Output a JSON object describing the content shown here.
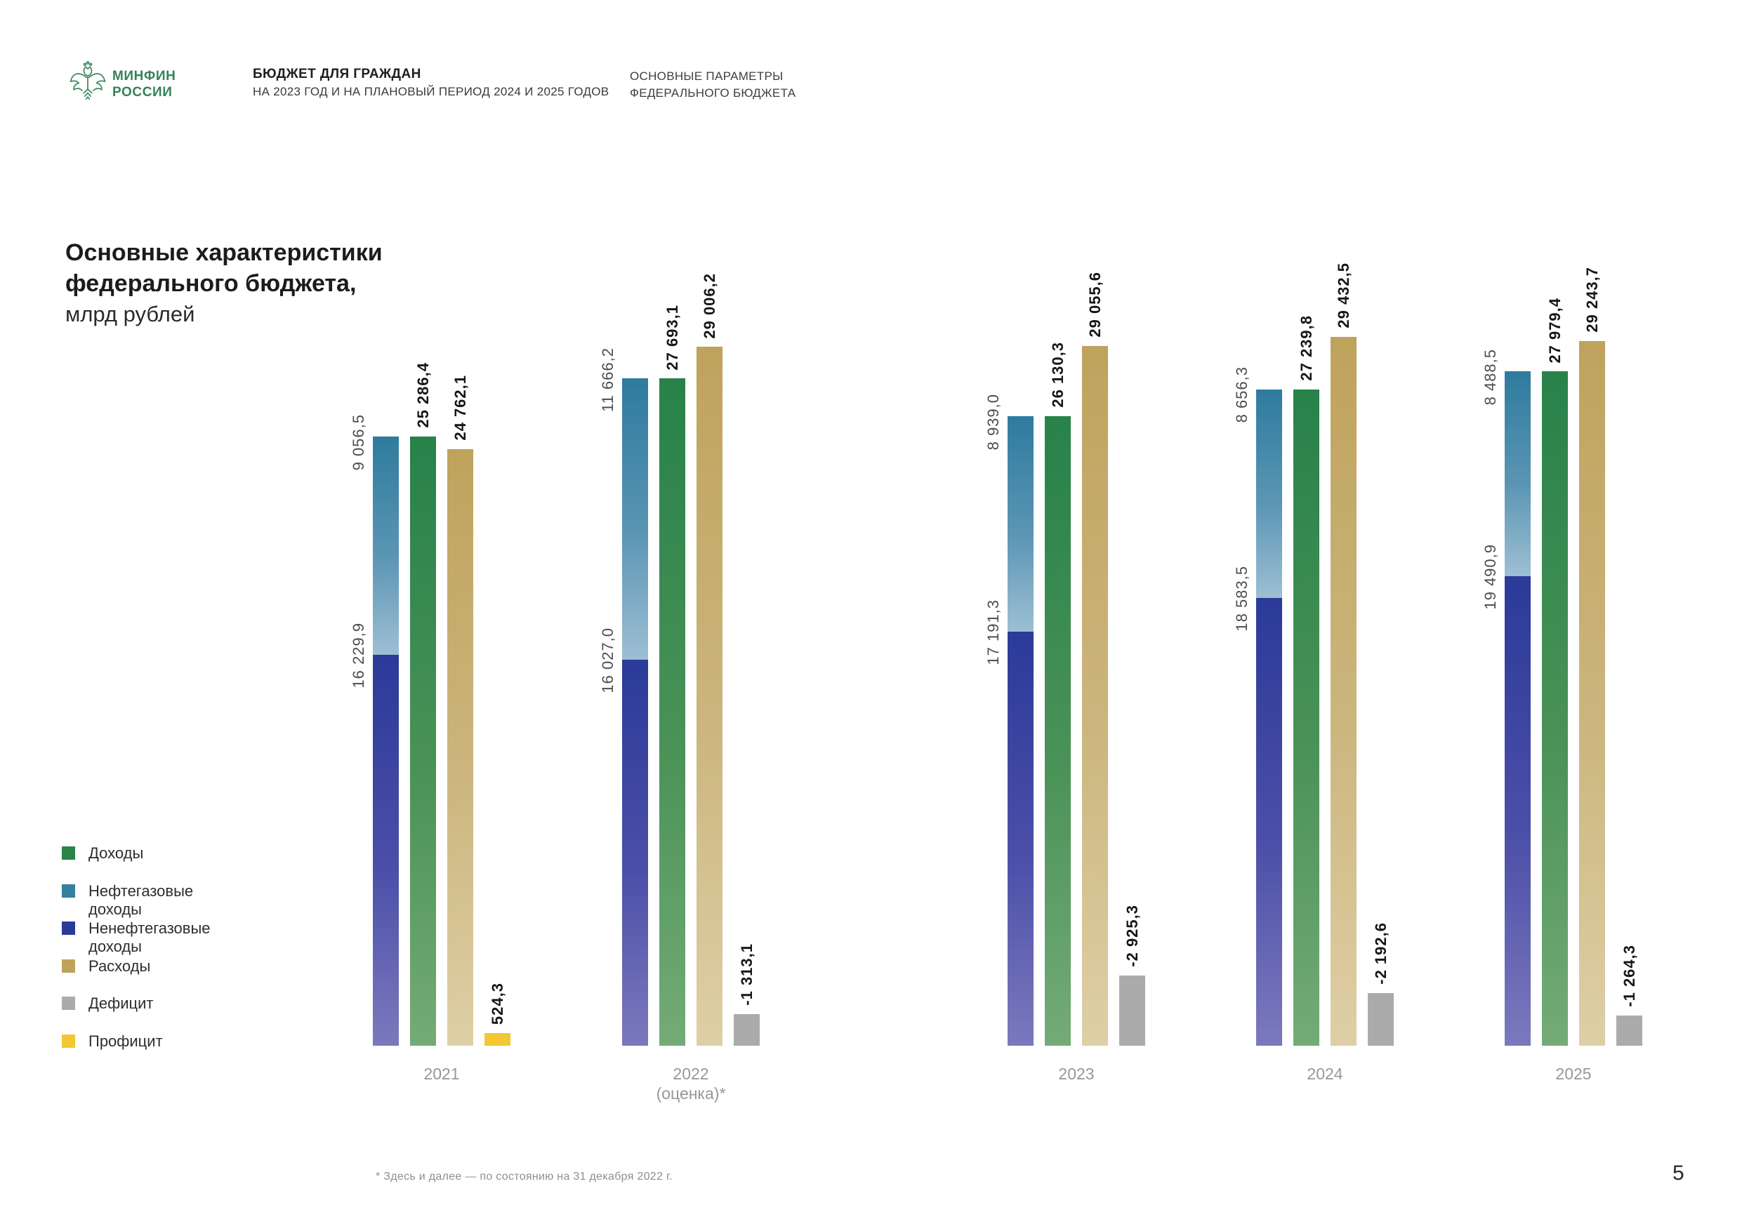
{
  "header": {
    "ministry": {
      "line1": "МИНФИН",
      "line2": "РОССИИ"
    },
    "document_title": "БЮДЖЕТ ДЛЯ ГРАЖДАН",
    "document_subtitle": "НА 2023 ГОД И НА ПЛАНОВЫЙ ПЕРИОД 2024 И 2025 ГОДОВ",
    "section_title_line1": "ОСНОВНЫЕ ПАРАМЕТРЫ",
    "section_title_line2": "ФЕДЕРАЛЬНОГО БЮДЖЕТА"
  },
  "chart_title": {
    "line1": "Основные характеристики",
    "line2": "федерального бюджета,",
    "unit": "млрд рублей"
  },
  "legend": {
    "items": [
      {
        "label": "Доходы",
        "color": "#2a8449"
      },
      {
        "label": "Нефтегазовые\nдоходы",
        "color": "#36809f"
      },
      {
        "label": "Ненефтегазовые\nдоходы",
        "color": "#2b3a99"
      },
      {
        "label": "Расходы",
        "color": "#bfa25c"
      },
      {
        "label": "Дефицит",
        "color": "#ababab"
      },
      {
        "label": "Профицит",
        "color": "#f2c733"
      }
    ]
  },
  "footnote": "* Здесь и далее — по состоянию на 31 декабря 2022 г.",
  "page_number": "5",
  "chart_data": {
    "type": "bar",
    "title": "Основные характеристики федерального бюджета, млрд рублей",
    "ylabel": "млрд рублей",
    "categories": [
      "2021",
      "2022 (оценка)*",
      "2023",
      "2024",
      "2025"
    ],
    "series_names": [
      "Нефтегазовые доходы",
      "Ненефтегазовые доходы",
      "Доходы",
      "Расходы",
      "Дефицит/Профицит"
    ],
    "groups": [
      {
        "year": "2021",
        "year_note": "",
        "oil": {
          "value": 9056.5,
          "label": "9 056,5"
        },
        "nonoil": {
          "value": 16229.9,
          "label": "16 229,9"
        },
        "revenue": {
          "value": 25286.4,
          "label": "25 286,4"
        },
        "expense": {
          "value": 24762.1,
          "label": "24 762,1"
        },
        "balance": {
          "value": 524.3,
          "label": "524,3"
        }
      },
      {
        "year": "2022",
        "year_note": "(оценка)*",
        "oil": {
          "value": 11666.2,
          "label": "11 666,2"
        },
        "nonoil": {
          "value": 16027.0,
          "label": "16 027,0"
        },
        "revenue": {
          "value": 27693.1,
          "label": "27 693,1"
        },
        "expense": {
          "value": 29006.2,
          "label": "29 006,2"
        },
        "balance": {
          "value": -1313.1,
          "label": "-1 313,1"
        }
      },
      {
        "year": "2023",
        "year_note": "",
        "oil": {
          "value": 8939.0,
          "label": "8 939,0"
        },
        "nonoil": {
          "value": 17191.3,
          "label": "17 191,3"
        },
        "revenue": {
          "value": 26130.3,
          "label": "26 130,3"
        },
        "expense": {
          "value": 29055.6,
          "label": "29 055,6"
        },
        "balance": {
          "value": -2925.3,
          "label": "-2 925,3"
        }
      },
      {
        "year": "2024",
        "year_note": "",
        "oil": {
          "value": 8656.3,
          "label": "8 656,3"
        },
        "nonoil": {
          "value": 18583.5,
          "label": "18 583,5"
        },
        "revenue": {
          "value": 27239.8,
          "label": "27 239,8"
        },
        "expense": {
          "value": 29432.5,
          "label": "29 432,5"
        },
        "balance": {
          "value": -2192.6,
          "label": "-2 192,6"
        }
      },
      {
        "year": "2025",
        "year_note": "",
        "oil": {
          "value": 8488.5,
          "label": "8 488,5"
        },
        "nonoil": {
          "value": 19490.9,
          "label": "19 490,9"
        },
        "revenue": {
          "value": 27979.4,
          "label": "27 979,4"
        },
        "expense": {
          "value": 29243.7,
          "label": "29 243,7"
        },
        "balance": {
          "value": -1264.3,
          "label": "-1 264,3"
        }
      }
    ]
  }
}
